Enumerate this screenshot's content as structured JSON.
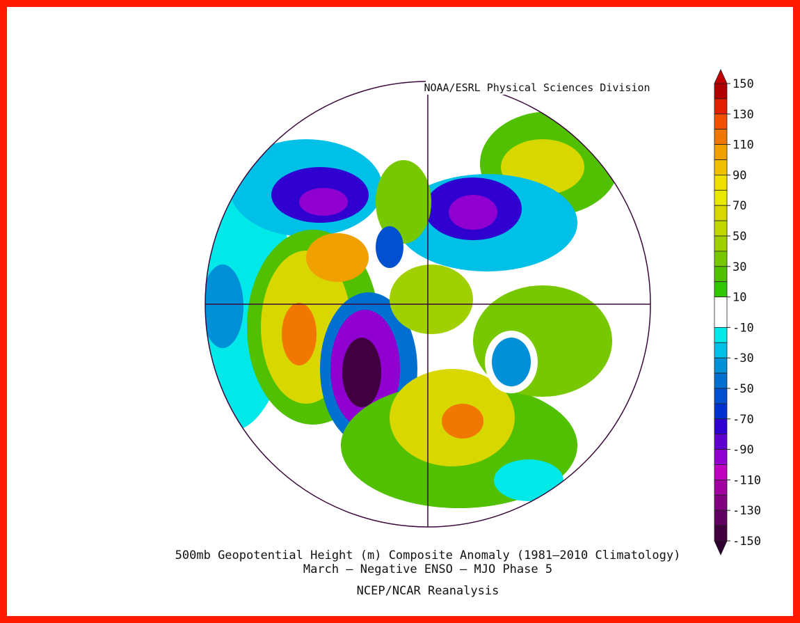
{
  "source": "NOAA/ESRL Physical Sciences Division",
  "title": "500mb Geopotential Height (m) Composite Anomaly (1981–2010 Climatology)",
  "subtitle": "March – Negative ENSO – MJO Phase 5",
  "footer": "NCEP/NCAR Reanalysis",
  "colorbar": {
    "ticks": [
      150,
      130,
      110,
      90,
      70,
      50,
      30,
      10,
      -10,
      -30,
      -50,
      -70,
      -90,
      -110,
      -130,
      -150
    ],
    "levels": [
      150,
      140,
      130,
      120,
      110,
      100,
      90,
      80,
      70,
      60,
      50,
      40,
      30,
      20,
      10,
      -10,
      -20,
      -30,
      -40,
      -50,
      -60,
      -70,
      -80,
      -90,
      -100,
      -110,
      -120,
      -130,
      -140,
      -150
    ],
    "colors": [
      "#b00000",
      "#e02000",
      "#f05000",
      "#f07800",
      "#f0a000",
      "#f0c000",
      "#f0e000",
      "#e8e800",
      "#d8d800",
      "#c0d800",
      "#a0d000",
      "#78c800",
      "#50c000",
      "#30c800",
      "#ffffff",
      "#00e8e8",
      "#00c0e8",
      "#0090d8",
      "#0070d0",
      "#0050d0",
      "#0030d0",
      "#3000d0",
      "#6000d0",
      "#9000d0",
      "#c000c0",
      "#a000a0",
      "#800080",
      "#600060",
      "#400040"
    ],
    "over_color": "#c00000",
    "under_color": "#300030"
  }
}
